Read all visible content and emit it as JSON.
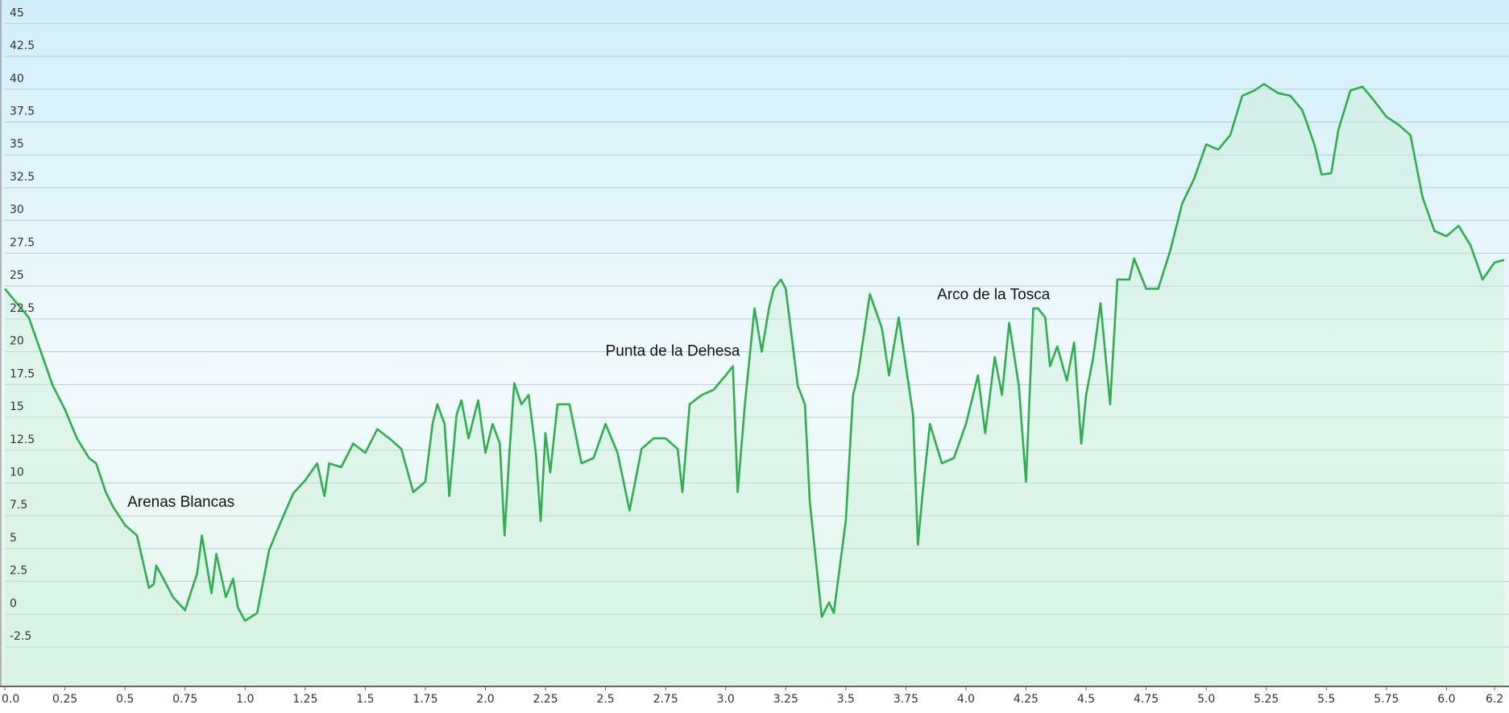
{
  "chart_data": {
    "type": "area",
    "color": "#2fae50",
    "fill": "#c9f0d6",
    "grid": true,
    "xlim": [
      0,
      6.25
    ],
    "ylim": [
      -5.5,
      46.8
    ],
    "xticks": [
      {
        "value": 0,
        "label": "0.0"
      },
      0.25,
      0.5,
      0.75,
      {
        "value": 1,
        "label": "1.0"
      },
      1.25,
      1.5,
      1.75,
      {
        "value": 2,
        "label": "2.0"
      },
      2.25,
      2.5,
      2.75,
      {
        "value": 3,
        "label": "3.0"
      },
      3.25,
      3.5,
      3.75,
      {
        "value": 4,
        "label": "4.0"
      },
      4.25,
      4.5,
      4.75,
      {
        "value": 5,
        "label": "5.0"
      },
      5.25,
      5.5,
      5.75,
      {
        "value": 6,
        "label": "6.0"
      },
      6.2
    ],
    "yticks": [
      -2.5,
      0,
      2.5,
      5,
      7.5,
      10,
      12.5,
      15,
      17.5,
      20,
      22.5,
      25,
      27.5,
      30,
      32.5,
      35,
      37.5,
      40,
      42.5,
      45
    ],
    "x": [
      0,
      0.05,
      0.1,
      0.15,
      0.2,
      0.25,
      0.3,
      0.35,
      0.38,
      0.42,
      0.45,
      0.5,
      0.55,
      0.6,
      0.62,
      0.63,
      0.66,
      0.7,
      0.75,
      0.8,
      0.82,
      0.86,
      0.88,
      0.92,
      0.95,
      0.97,
      1.0,
      1.05,
      1.1,
      1.15,
      1.2,
      1.25,
      1.3,
      1.33,
      1.35,
      1.4,
      1.45,
      1.5,
      1.55,
      1.6,
      1.65,
      1.7,
      1.75,
      1.78,
      1.8,
      1.83,
      1.85,
      1.88,
      1.9,
      1.93,
      1.97,
      2.0,
      2.03,
      2.06,
      2.08,
      2.1,
      2.12,
      2.15,
      2.18,
      2.21,
      2.23,
      2.25,
      2.27,
      2.3,
      2.35,
      2.4,
      2.45,
      2.5,
      2.55,
      2.6,
      2.65,
      2.7,
      2.75,
      2.8,
      2.82,
      2.85,
      2.9,
      2.95,
      3.0,
      3.03,
      3.05,
      3.08,
      3.12,
      3.15,
      3.18,
      3.2,
      3.23,
      3.25,
      3.3,
      3.33,
      3.35,
      3.4,
      3.43,
      3.45,
      3.5,
      3.53,
      3.55,
      3.6,
      3.65,
      3.68,
      3.72,
      3.75,
      3.78,
      3.8,
      3.82,
      3.85,
      3.9,
      3.95,
      4.0,
      4.05,
      4.08,
      4.12,
      4.15,
      4.18,
      4.22,
      4.25,
      4.28,
      4.3,
      4.33,
      4.35,
      4.38,
      4.42,
      4.45,
      4.48,
      4.5,
      4.53,
      4.56,
      4.6,
      4.63,
      4.68,
      4.7,
      4.75,
      4.8,
      4.85,
      4.9,
      4.95,
      5.0,
      5.05,
      5.1,
      5.15,
      5.2,
      5.24,
      5.3,
      5.35,
      5.4,
      5.45,
      5.48,
      5.52,
      5.55,
      5.6,
      5.65,
      5.7,
      5.75,
      5.8,
      5.85,
      5.9,
      5.95,
      6.0,
      6.05,
      6.1,
      6.15,
      6.2,
      6.24
    ],
    "values": [
      24.8,
      23.7,
      22.6,
      20,
      17.4,
      15.6,
      13.4,
      11.9,
      11.5,
      9.3,
      8.2,
      6.8,
      6,
      2,
      2.3,
      3.7,
      2.7,
      1.3,
      0.3,
      3.1,
      6,
      1.6,
      4.6,
      1.3,
      2.7,
      0.5,
      -0.5,
      0.1,
      4.9,
      7.1,
      9.2,
      10.2,
      11.5,
      9,
      11.5,
      11.2,
      13,
      12.3,
      14.1,
      13.4,
      12.6,
      9.3,
      10.1,
      14.5,
      16,
      14.5,
      9,
      15.2,
      16.3,
      13.4,
      16.3,
      12.3,
      14.5,
      13,
      6,
      12.3,
      17.6,
      16,
      16.7,
      12.3,
      7.1,
      13.8,
      10.8,
      16,
      16,
      11.5,
      11.9,
      14.5,
      12.3,
      7.9,
      12.6,
      13.4,
      13.4,
      12.6,
      9.3,
      16,
      16.7,
      17.1,
      18.2,
      18.9,
      9.3,
      16,
      23.3,
      20,
      23.3,
      24.8,
      25.5,
      24.8,
      17.4,
      16,
      8.6,
      -0.2,
      0.9,
      0.1,
      7.1,
      16.7,
      18.2,
      24.4,
      21.8,
      18.2,
      22.6,
      18.9,
      15.2,
      5.3,
      9.3,
      14.5,
      11.5,
      11.9,
      14.5,
      18.2,
      13.8,
      19.6,
      16.7,
      22.2,
      17.4,
      10.1,
      23.3,
      23.3,
      22.6,
      18.9,
      20.4,
      17.8,
      20.7,
      13,
      16.7,
      19.6,
      23.7,
      16,
      25.5,
      25.5,
      27.1,
      24.8,
      24.8,
      27.7,
      31.3,
      33.2,
      35.8,
      35.4,
      36.5,
      39.5,
      39.9,
      40.4,
      39.7,
      39.5,
      38.4,
      35.8,
      33.5,
      33.6,
      36.9,
      39.9,
      40.2,
      39.1,
      37.9,
      37.3,
      36.5,
      31.8,
      29.2,
      28.8,
      29.6,
      28.1,
      25.5,
      26.8,
      27
    ],
    "annotations": [
      {
        "text": "Arenas Blancas",
        "x": 0.51,
        "y": 8.2
      },
      {
        "text": "Punta de la Dehesa",
        "x": 2.5,
        "y": 19.7
      },
      {
        "text": "Arco de la Tosca",
        "x": 3.88,
        "y": 24
      }
    ]
  }
}
